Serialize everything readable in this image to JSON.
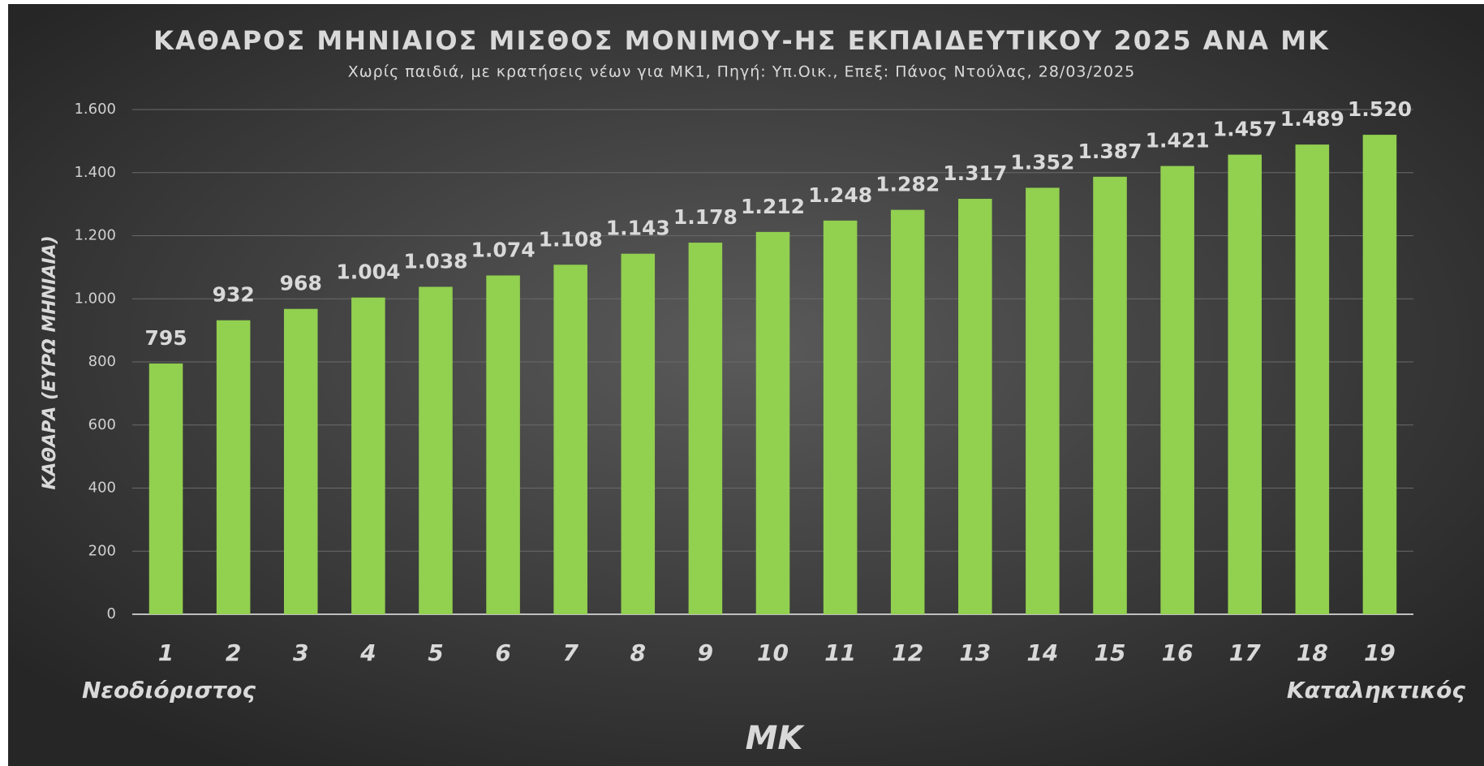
{
  "chart_data": {
    "type": "bar",
    "title": "ΚΑΘΑΡΟΣ ΜΗΝΙΑΙΟΣ ΜΙΣΘΟΣ ΜΟΝΙΜΟΥ-ΗΣ ΕΚΠΑΙΔΕΥΤΙΚΟΥ 2025 ΑΝΑ ΜΚ",
    "subtitle": "Χωρίς παιδιά, με κρατήσεις νέων για ΜΚ1, Πηγή: Υπ.Οικ., Επεξ: Πάνος Ντούλας, 28/03/2025",
    "x_label": "ΜΚ",
    "y_label": "ΚΑΘΑΡΑ (ΕΥΡΩ ΜΗΝΙΑΙΑ)",
    "annotations": [
      "Νεοδιόριστος",
      "Καταληκτικός"
    ],
    "categories": [
      "1",
      "2",
      "3",
      "4",
      "5",
      "6",
      "7",
      "8",
      "9",
      "10",
      "11",
      "12",
      "13",
      "14",
      "15",
      "16",
      "17",
      "18",
      "19"
    ],
    "values": [
      795,
      932,
      968,
      1004,
      1038,
      1074,
      1108,
      1143,
      1178,
      1212,
      1248,
      1282,
      1317,
      1352,
      1387,
      1421,
      1457,
      1489,
      1520
    ],
    "value_labels": [
      "795",
      "932",
      "968",
      "1.004",
      "1.038",
      "1.074",
      "1.108",
      "1.143",
      "1.178",
      "1.212",
      "1.248",
      "1.282",
      "1.317",
      "1.352",
      "1.387",
      "1.421",
      "1.457",
      "1.489",
      "1.520"
    ],
    "color": "#92d050",
    "ylim": [
      0,
      1600
    ],
    "yticks": [
      0,
      200,
      400,
      600,
      800,
      {
        "value": 1000,
        "label": "1.000"
      },
      {
        "value": 1200,
        "label": "1.200"
      },
      {
        "value": 1400,
        "label": "1.400"
      },
      {
        "value": 1600,
        "label": "1.600"
      }
    ],
    "grid": true
  }
}
